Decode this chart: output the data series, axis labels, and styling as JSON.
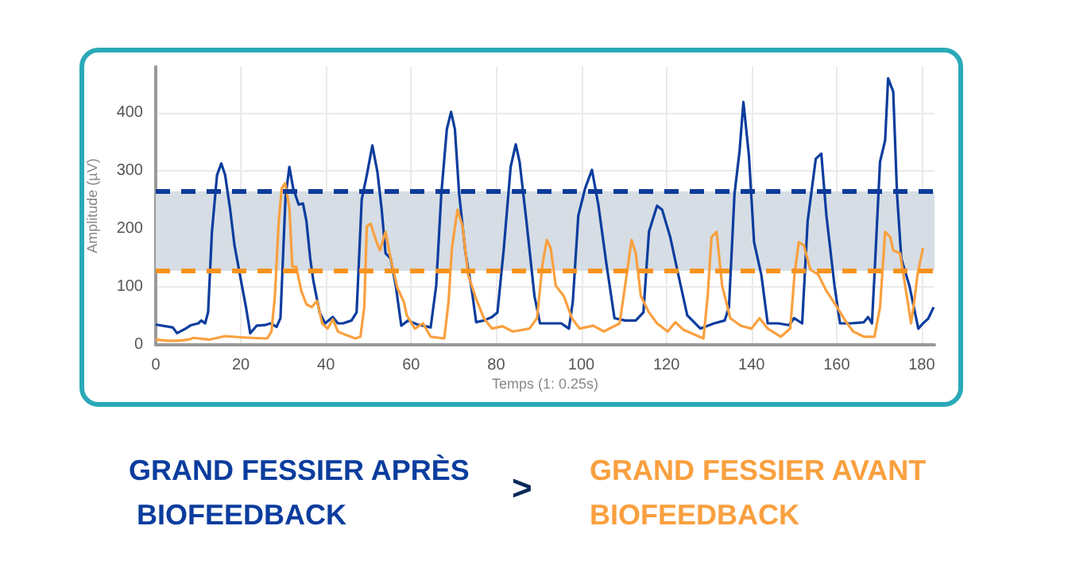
{
  "chart_data": {
    "type": "line",
    "xlabel": "Temps (1: 0.25s)",
    "ylabel": "Amplitude (µV)",
    "xlim": [
      0,
      183
    ],
    "xticks": [
      0,
      20,
      40,
      60,
      80,
      100,
      120,
      140,
      160,
      180
    ],
    "ylim": [
      0,
      480
    ],
    "yticks": [
      0,
      100,
      200,
      300,
      400
    ],
    "grid": true,
    "legend": "bottom",
    "marker": "none",
    "annotations": [
      ">"
    ],
    "bands": [
      {
        "axis": "y",
        "from": 128,
        "to": 265,
        "color": "#d6dde4"
      }
    ],
    "ref_lines": [
      {
        "axis": "y",
        "value": 265,
        "color": "#0d3b99",
        "line_style": "dashed"
      },
      {
        "axis": "y",
        "value": 128,
        "color": "#f7931e",
        "line_style": "dashed"
      }
    ],
    "series": [
      {
        "name": "GRAND FESSIER APRÈS BIOFEEDBACK",
        "color": "#0b3d9e",
        "x": [
          0,
          4,
          5,
          7,
          8.3,
          10,
          10.7,
          11.6,
          12.3,
          13.2,
          14.4,
          15.4,
          16.3,
          17.5,
          18.5,
          20,
          21.2,
          22.2,
          23.7,
          25.6,
          27,
          28.4,
          29.3,
          30.5,
          31.4,
          32.3,
          33.6,
          34.6,
          35.4,
          36.3,
          37,
          38.5,
          39.8,
          41.6,
          42.8,
          44,
          46,
          47.2,
          48.4,
          49.6,
          50.9,
          52.1,
          53.1,
          54,
          55.2,
          56.4,
          57.7,
          59.3,
          61.5,
          62.8,
          64.6,
          65.9,
          67.1,
          68.4,
          69.4,
          70.3,
          71.3,
          72.8,
          74.3,
          75.3,
          77.1,
          79,
          80.3,
          81.8,
          83.4,
          84.6,
          85.5,
          87.1,
          89,
          90.3,
          92.8,
          95.3,
          97.1,
          98,
          99.3,
          100.9,
          102.5,
          104,
          105.9,
          107.8,
          110.3,
          112.8,
          114.6,
          115.9,
          117.8,
          119,
          120.9,
          122.8,
          124.9,
          128,
          131.2,
          133.7,
          134.7,
          136,
          137.2,
          138.1,
          139.4,
          140.6,
          142.3,
          143.8,
          146.3,
          148.8,
          150,
          151.9,
          153.2,
          155.1,
          156.4,
          157.6,
          159.5,
          160.8,
          163.3,
          166.4,
          167.4,
          168.3,
          168.9,
          170.2,
          171.4,
          172.1,
          173.3,
          174.2,
          175.2,
          177.1,
          179.2,
          180.3,
          181.5,
          182.8
        ],
        "values": [
          35,
          30,
          20,
          28,
          34,
          37,
          42,
          37,
          56,
          195,
          293,
          313,
          293,
          233,
          172,
          112,
          65,
          20,
          33,
          34,
          37,
          31,
          46,
          256,
          307,
          270,
          242,
          244,
          214,
          149,
          112,
          56,
          37,
          48,
          37,
          37,
          42,
          56,
          251,
          293,
          344,
          298,
          233,
          158,
          149,
          102,
          33,
          42,
          35,
          33,
          30,
          102,
          260,
          372,
          402,
          372,
          260,
          158,
          93,
          39,
          42,
          48,
          56,
          167,
          307,
          346,
          316,
          214,
          84,
          37,
          37,
          37,
          28,
          74,
          223,
          270,
          302,
          242,
          140,
          46,
          42,
          42,
          56,
          195,
          240,
          233,
          186,
          121,
          51,
          28,
          37,
          42,
          65,
          260,
          335,
          419,
          326,
          177,
          121,
          37,
          37,
          34,
          46,
          37,
          214,
          321,
          330,
          223,
          102,
          37,
          37,
          39,
          48,
          37,
          121,
          316,
          353,
          460,
          437,
          260,
          149,
          102,
          28,
          37,
          45,
          65
        ]
      },
      {
        "name": "GRAND FESSIER AVANT BIOFEEDBACK",
        "color": "#f9a03f",
        "x": [
          0,
          2.7,
          5.2,
          7.7,
          8.9,
          12.6,
          16.3,
          20,
          22.5,
          26.2,
          27.2,
          28,
          28.9,
          29.6,
          30.4,
          31.4,
          32.1,
          33,
          34.2,
          35.4,
          36.7,
          37.9,
          39.1,
          40.4,
          41.6,
          42.8,
          44.7,
          46.9,
          48.1,
          49,
          49.6,
          50.5,
          51.9,
          52.7,
          54,
          55.2,
          56.8,
          58.3,
          59,
          60.9,
          62.8,
          64.6,
          67.8,
          68.8,
          69.6,
          70.9,
          72.1,
          73.4,
          75.3,
          77.1,
          79,
          81.5,
          83.9,
          87.8,
          89.6,
          90.9,
          91.9,
          92.8,
          94,
          95.9,
          97.8,
          99.6,
          102.8,
          105.3,
          109,
          110.5,
          111.8,
          112.8,
          114,
          115.9,
          117.8,
          120.3,
          122.1,
          124,
          128.7,
          129.7,
          130.6,
          131.8,
          133.1,
          135,
          137.5,
          140,
          141.9,
          143.8,
          146.9,
          149.1,
          150.1,
          151.1,
          152.3,
          153.8,
          155.7,
          157.6,
          160.1,
          162,
          163.9,
          166.4,
          168.9,
          170.2,
          171.4,
          172.6,
          173.3,
          174.9,
          176.5,
          177.5,
          178.4,
          179,
          180.3
        ],
        "values": [
          9,
          7,
          7,
          9,
          12,
          9,
          15,
          13,
          12,
          11,
          23,
          84,
          214,
          270,
          279,
          237,
          135,
          135,
          93,
          70,
          65,
          76,
          37,
          28,
          44,
          23,
          17,
          11,
          14,
          65,
          205,
          209,
          177,
          163,
          195,
          149,
          98,
          74,
          51,
          28,
          37,
          14,
          11,
          74,
          167,
          233,
          205,
          121,
          79,
          46,
          28,
          32,
          23,
          28,
          46,
          140,
          181,
          167,
          102,
          84,
          46,
          28,
          33,
          23,
          37,
          112,
          181,
          158,
          84,
          56,
          37,
          23,
          39,
          26,
          11,
          84,
          186,
          195,
          102,
          46,
          33,
          28,
          46,
          28,
          14,
          28,
          121,
          177,
          172,
          130,
          121,
          93,
          65,
          42,
          23,
          14,
          14,
          65,
          195,
          186,
          163,
          158,
          84,
          37,
          84,
          121,
          167
        ]
      }
    ]
  }
}
